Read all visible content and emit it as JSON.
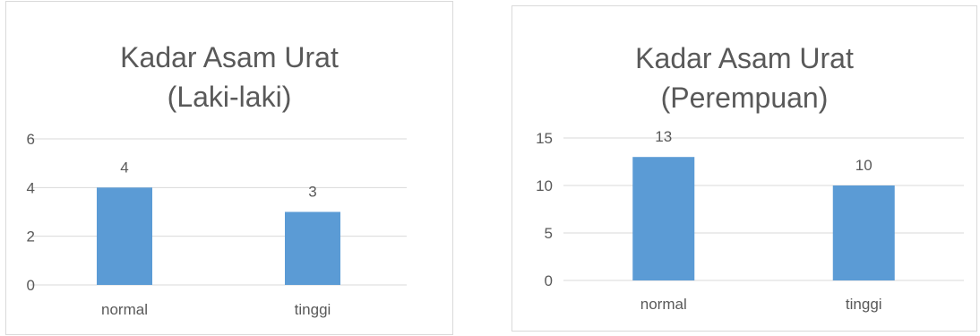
{
  "chart_data": [
    {
      "type": "bar",
      "title": [
        "Kadar Asam Urat",
        "(Laki-laki)"
      ],
      "categories": [
        "normal",
        "tinggi"
      ],
      "values": [
        4,
        3
      ],
      "data_labels": [
        "4",
        "3"
      ],
      "yticks": [
        "0",
        "2",
        "4",
        "6"
      ],
      "ylim": [
        0,
        6
      ],
      "grid": true,
      "bar_color": "#5b9bd5"
    },
    {
      "type": "bar",
      "title": [
        "Kadar Asam Urat",
        "(Perempuan)"
      ],
      "categories": [
        "normal",
        "tinggi"
      ],
      "values": [
        13,
        10
      ],
      "data_labels": [
        "13",
        "10"
      ],
      "yticks": [
        "0",
        "5",
        "10",
        "15"
      ],
      "ylim": [
        0,
        15
      ],
      "grid": true,
      "bar_color": "#5b9bd5"
    }
  ]
}
